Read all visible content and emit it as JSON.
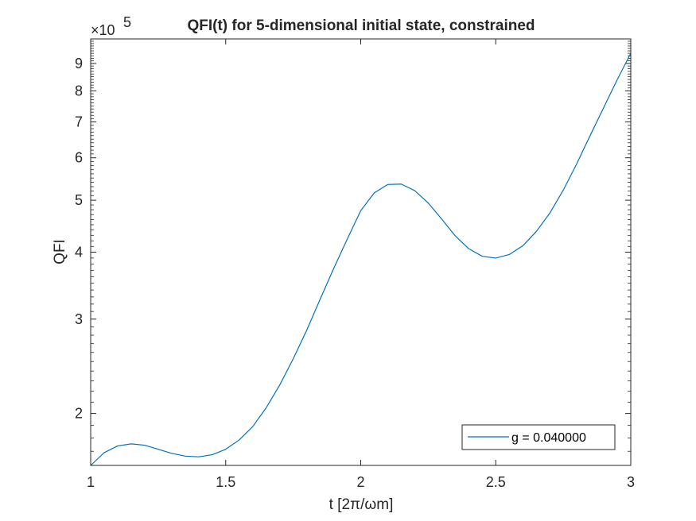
{
  "chart_data": {
    "type": "line",
    "title": "QFI(t) for 5-dimensional initial state, constrained",
    "xlabel": "t [2π/ωm]",
    "ylabel": "QFI",
    "xlim": [
      1,
      3
    ],
    "ylim": [
      160000,
      1000000
    ],
    "yscale": "log",
    "y_exponent_label": "×10",
    "y_exponent_power": "5",
    "x_ticks": [
      1,
      1.5,
      2,
      2.5,
      3
    ],
    "x_tick_labels": [
      "1",
      "1.5",
      "2",
      "2.5",
      "3"
    ],
    "y_ticks": [
      200000,
      300000,
      400000,
      500000,
      600000,
      700000,
      800000,
      900000
    ],
    "y_tick_labels": [
      "2",
      "3",
      "4",
      "5",
      "6",
      "7",
      "8",
      "9"
    ],
    "grid": false,
    "legend": {
      "location": "bottom-right",
      "entries": [
        "g = 0.040000"
      ]
    },
    "colors": {
      "series": "#0072BD",
      "axes": "#262626"
    },
    "series": [
      {
        "name": "g = 0.040000",
        "x": [
          1.0,
          1.05,
          1.1,
          1.15,
          1.2,
          1.25,
          1.3,
          1.35,
          1.4,
          1.45,
          1.5,
          1.55,
          1.6,
          1.65,
          1.7,
          1.75,
          1.8,
          1.85,
          1.9,
          1.95,
          2.0,
          2.05,
          2.1,
          2.15,
          2.2,
          2.25,
          2.3,
          2.35,
          2.4,
          2.45,
          2.5,
          2.55,
          2.6,
          2.65,
          2.7,
          2.75,
          2.8,
          2.85,
          2.9,
          2.95,
          3.0
        ],
        "y": [
          160000,
          169000,
          174000,
          175500,
          174500,
          171500,
          168500,
          166500,
          166000,
          167500,
          171500,
          178500,
          189000,
          205000,
          226000,
          253000,
          286000,
          327000,
          373000,
          423000,
          478000,
          516000,
          535000,
          536000,
          521000,
          494000,
          461000,
          429000,
          406000,
          393000,
          390000,
          396000,
          411000,
          437000,
          473000,
          522000,
          585000,
          661000,
          745000,
          840000,
          940000
        ]
      }
    ]
  }
}
